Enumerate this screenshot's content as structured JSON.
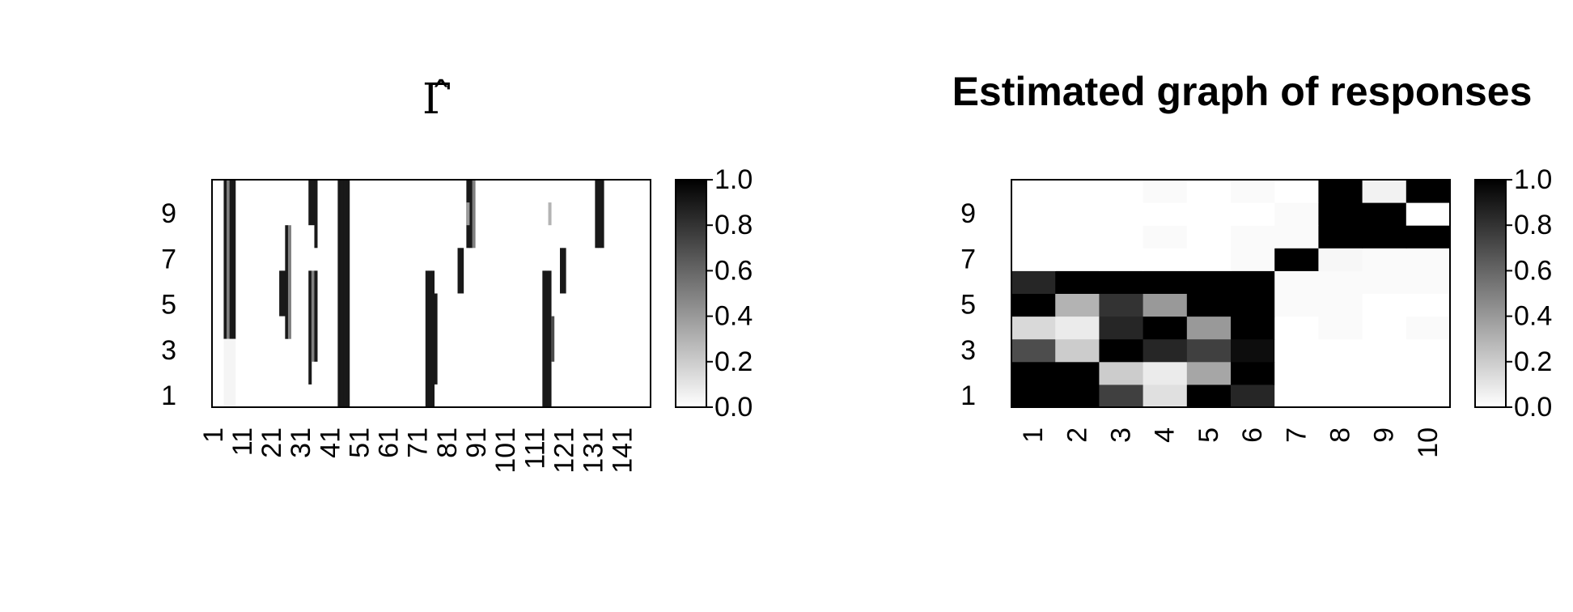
{
  "chart_data": [
    {
      "type": "heatmap",
      "title": "Γ̂",
      "n_cols": 150,
      "n_rows": 10,
      "x_tick_labels": [
        "1",
        "11",
        "21",
        "31",
        "41",
        "51",
        "61",
        "71",
        "81",
        "91",
        "101",
        "111",
        "121",
        "131",
        "141"
      ],
      "y_tick_labels": [
        "1",
        "3",
        "5",
        "7",
        "9"
      ],
      "colorbar": {
        "range": [
          0.0,
          1.0
        ],
        "tick_labels": [
          "0.0",
          "0.2",
          "0.4",
          "0.6",
          "0.8",
          "1.0"
        ],
        "low_color": "#ffffff",
        "high_color": "#000000"
      },
      "segments_note": "value runs per column: [col_start, col_end, row_start, row_end, value], 1-indexed, rows counted from bottom",
      "segments": [
        [
          5,
          5,
          4,
          10,
          0.9
        ],
        [
          6,
          6,
          4,
          10,
          0.5
        ],
        [
          7,
          7,
          4,
          10,
          0.9
        ],
        [
          8,
          8,
          4,
          10,
          0.9
        ],
        [
          5,
          8,
          1,
          3,
          0.04
        ],
        [
          24,
          24,
          5,
          6,
          0.9
        ],
        [
          25,
          25,
          5,
          6,
          0.9
        ],
        [
          26,
          26,
          4,
          8,
          0.9
        ],
        [
          27,
          27,
          4,
          8,
          0.5
        ],
        [
          34,
          34,
          2,
          6,
          0.9
        ],
        [
          35,
          35,
          3,
          6,
          0.5
        ],
        [
          36,
          36,
          3,
          6,
          0.9
        ],
        [
          34,
          35,
          9,
          10,
          0.9
        ],
        [
          36,
          36,
          8,
          10,
          0.9
        ],
        [
          44,
          44,
          1,
          10,
          0.9
        ],
        [
          45,
          45,
          1,
          10,
          0.9
        ],
        [
          46,
          46,
          1,
          10,
          0.9
        ],
        [
          47,
          47,
          1,
          10,
          0.9
        ],
        [
          74,
          74,
          1,
          6,
          0.9
        ],
        [
          75,
          75,
          1,
          6,
          0.9
        ],
        [
          76,
          76,
          1,
          6,
          0.9
        ],
        [
          77,
          77,
          2,
          5,
          0.9
        ],
        [
          88,
          88,
          8,
          10,
          0.9
        ],
        [
          89,
          89,
          8,
          10,
          0.9
        ],
        [
          90,
          90,
          8,
          10,
          0.5
        ],
        [
          85,
          85,
          6,
          7,
          0.9
        ],
        [
          86,
          86,
          6,
          7,
          0.9
        ],
        [
          114,
          114,
          1,
          6,
          0.9
        ],
        [
          115,
          115,
          1,
          6,
          0.9
        ],
        [
          116,
          116,
          1,
          6,
          0.9
        ],
        [
          117,
          117,
          3,
          4,
          0.7
        ],
        [
          120,
          120,
          6,
          7,
          0.9
        ],
        [
          121,
          121,
          6,
          7,
          0.9
        ],
        [
          132,
          132,
          8,
          10,
          0.9
        ],
        [
          133,
          133,
          8,
          10,
          0.9
        ],
        [
          134,
          134,
          8,
          10,
          0.9
        ],
        [
          88,
          88,
          9,
          9,
          0.4
        ],
        [
          116,
          116,
          9,
          9,
          0.3
        ]
      ]
    },
    {
      "type": "heatmap",
      "title": "Estimated graph of responses",
      "n_cols": 10,
      "n_rows": 10,
      "x_tick_labels": [
        "1",
        "2",
        "3",
        "4",
        "5",
        "6",
        "7",
        "8",
        "9",
        "10"
      ],
      "y_tick_labels": [
        "1",
        "3",
        "5",
        "7",
        "9"
      ],
      "colorbar": {
        "range": [
          0.0,
          1.0
        ],
        "tick_labels": [
          "0.0",
          "0.2",
          "0.4",
          "0.6",
          "0.8",
          "1.0"
        ],
        "low_color": "#ffffff",
        "high_color": "#000000"
      },
      "matrix_note": "rows listed from row 1 (bottom) to row 10 (top)",
      "matrix": [
        [
          1.0,
          1.0,
          0.75,
          0.12,
          1.0,
          0.85,
          0.0,
          0.0,
          0.0,
          0.0
        ],
        [
          1.0,
          1.0,
          0.2,
          0.08,
          0.35,
          1.0,
          0.0,
          0.0,
          0.0,
          0.0
        ],
        [
          0.7,
          0.2,
          1.0,
          0.85,
          0.75,
          0.95,
          0.0,
          0.0,
          0.0,
          0.0
        ],
        [
          0.15,
          0.08,
          0.85,
          1.0,
          0.4,
          1.0,
          0.0,
          0.02,
          0.0,
          0.02
        ],
        [
          1.0,
          0.3,
          0.8,
          0.4,
          1.0,
          1.0,
          0.02,
          0.02,
          0.0,
          0.0
        ],
        [
          0.85,
          1.0,
          1.0,
          1.0,
          1.0,
          1.0,
          0.02,
          0.02,
          0.02,
          0.02
        ],
        [
          0.0,
          0.0,
          0.0,
          0.0,
          0.0,
          0.02,
          1.0,
          0.03,
          0.02,
          0.02
        ],
        [
          0.0,
          0.0,
          0.0,
          0.02,
          0.0,
          0.02,
          0.02,
          1.0,
          1.0,
          1.0
        ],
        [
          0.0,
          0.0,
          0.0,
          0.0,
          0.0,
          0.0,
          0.02,
          1.0,
          1.0,
          0.0
        ],
        [
          0.0,
          0.0,
          0.0,
          0.02,
          0.0,
          0.02,
          0.0,
          1.0,
          0.05,
          1.0
        ]
      ]
    }
  ]
}
